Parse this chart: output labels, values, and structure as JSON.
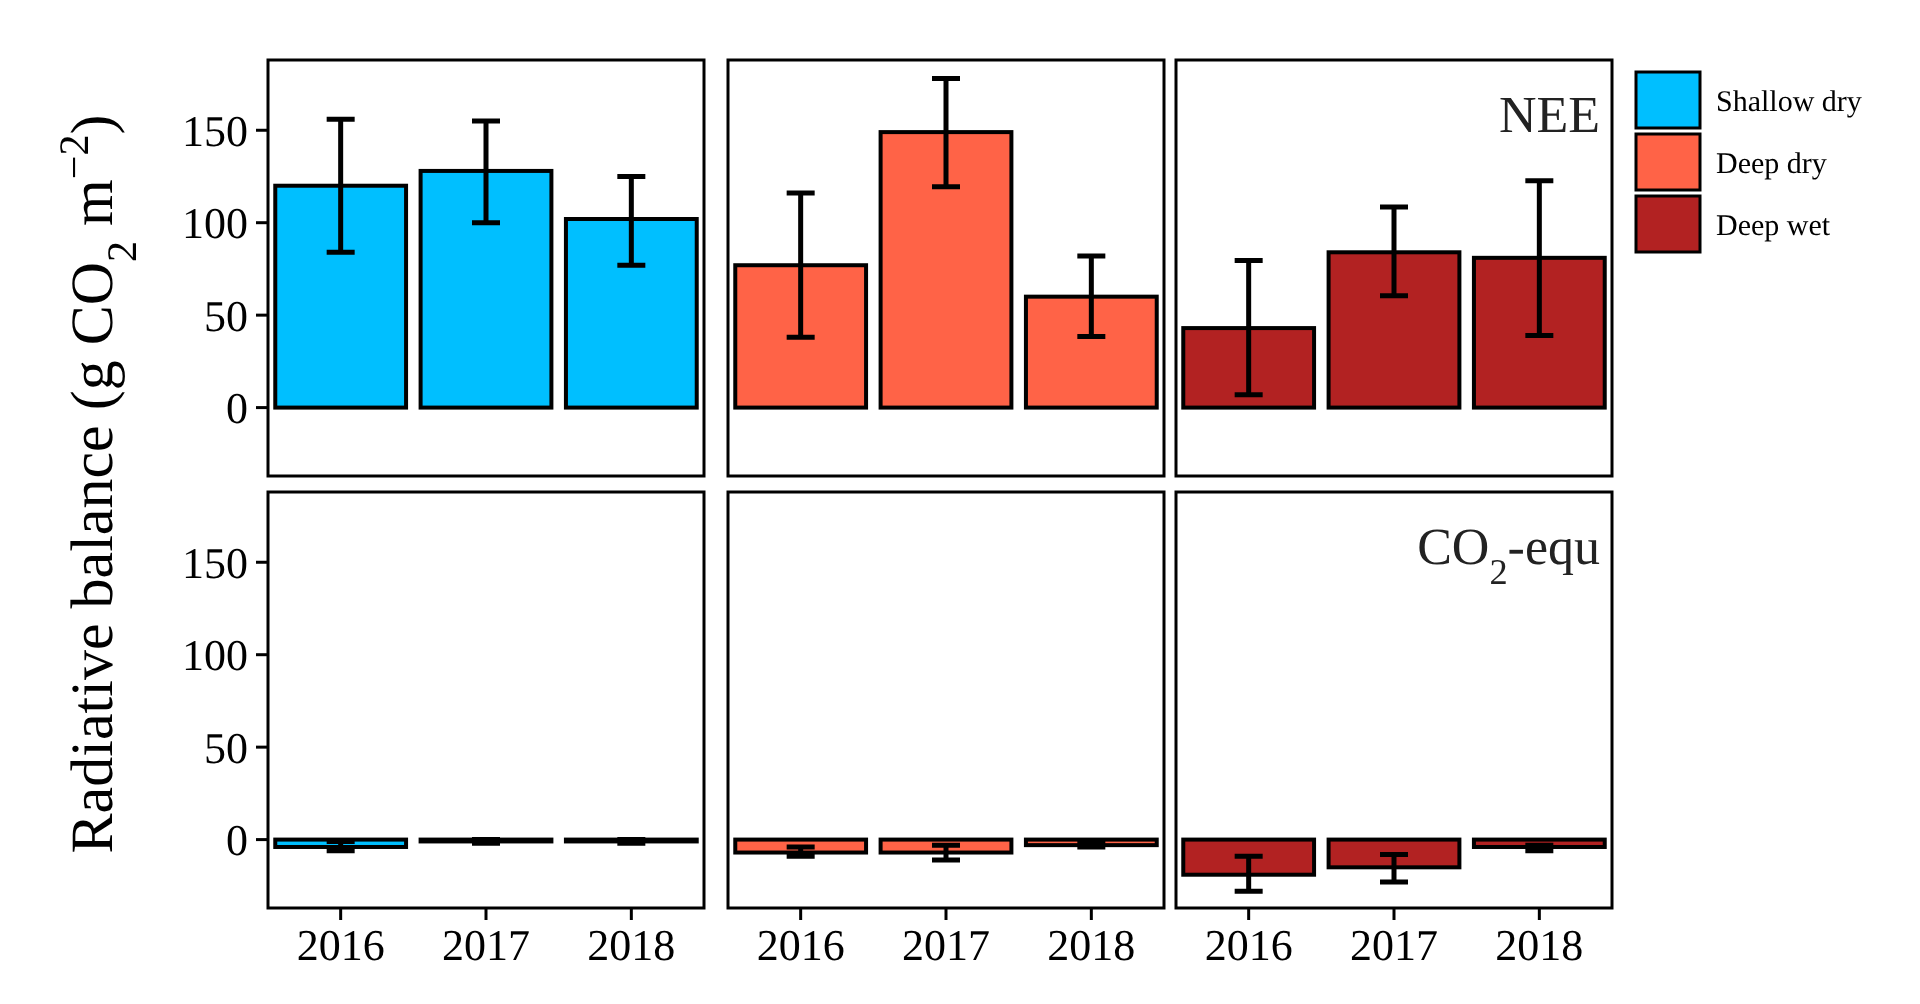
{
  "chart_data": [
    {
      "type": "bar",
      "ylabel": "Radiative balance  (g CO$_{2}$ m$^{−2}$)",
      "categories": [
        "2016",
        "2017",
        "2018"
      ],
      "legend": "right",
      "tick_labels": "y",
      "ylim": [
        -37,
        188
      ],
      "yticks": [
        0,
        50,
        100,
        150
      ],
      "series": [
        {
          "name": "Shallow dry",
          "color": "#00bfff",
          "values": [
            120,
            128,
            102
          ],
          "errors": [
            [
              84,
              156
            ],
            [
              100,
              155
            ],
            [
              77,
              125
            ]
          ]
        }
      ]
    },
    {
      "type": "bar",
      "categories": [
        "2016",
        "2017",
        "2018"
      ],
      "legend": "right",
      "tick_labels": false,
      "ylim": [
        -37,
        188
      ],
      "yticks": [
        0,
        50,
        100,
        150
      ],
      "series": [
        {
          "name": "Deep dry",
          "color": "#ff6347",
          "values": [
            77,
            149,
            60
          ],
          "errors": [
            [
              38,
              116
            ],
            [
              119.5,
              178
            ],
            [
              38.5,
              82
            ]
          ]
        }
      ]
    },
    {
      "type": "bar",
      "categories": [
        "2016",
        "2017",
        "2018"
      ],
      "legend": "right",
      "tick_labels": false,
      "ylim": [
        -37,
        188
      ],
      "yticks": [
        0,
        50,
        100,
        150
      ],
      "annotations": [
        "NEE"
      ],
      "series": [
        {
          "name": "Deep wet",
          "color": "#b22222",
          "values": [
            43,
            84,
            81
          ],
          "errors": [
            [
              7,
              79.5
            ],
            [
              60.5,
              108.5
            ],
            [
              39,
              122.7
            ]
          ]
        }
      ]
    },
    {
      "type": "bar",
      "categories": [
        "2016",
        "2017",
        "2018"
      ],
      "ylim": [
        -37,
        188
      ],
      "yticks": [
        0,
        50,
        100,
        150
      ],
      "series": [
        {
          "color": "#00bfff",
          "values": [
            -4,
            -1,
            -1
          ],
          "errors": [
            [
              -6,
              -1
            ],
            [
              -2,
              0
            ],
            [
              -2,
              0
            ]
          ]
        }
      ]
    },
    {
      "type": "bar",
      "categories": [
        "2016",
        "2017",
        "2018"
      ],
      "tick_labels": "x",
      "ylim": [
        -37,
        188
      ],
      "yticks": [
        0,
        50,
        100,
        150
      ],
      "series": [
        {
          "color": "#ff6347",
          "values": [
            -7,
            -7,
            -3
          ],
          "errors": [
            [
              -9,
              -4
            ],
            [
              -11,
              -3
            ],
            [
              -4,
              -2
            ]
          ]
        }
      ]
    },
    {
      "type": "bar",
      "categories": [
        "2016",
        "2017",
        "2018"
      ],
      "tick_labels": "x",
      "ylim": [
        -37,
        188
      ],
      "yticks": [
        0,
        50,
        100,
        150
      ],
      "annotations": [
        "CO$_{2}$-equ"
      ],
      "series": [
        {
          "color": "#b22222",
          "values": [
            -19,
            -15,
            -4
          ],
          "errors": [
            [
              -28,
              -9
            ],
            [
              -23,
              -8
            ],
            [
              -6,
              -3
            ]
          ]
        }
      ]
    }
  ]
}
